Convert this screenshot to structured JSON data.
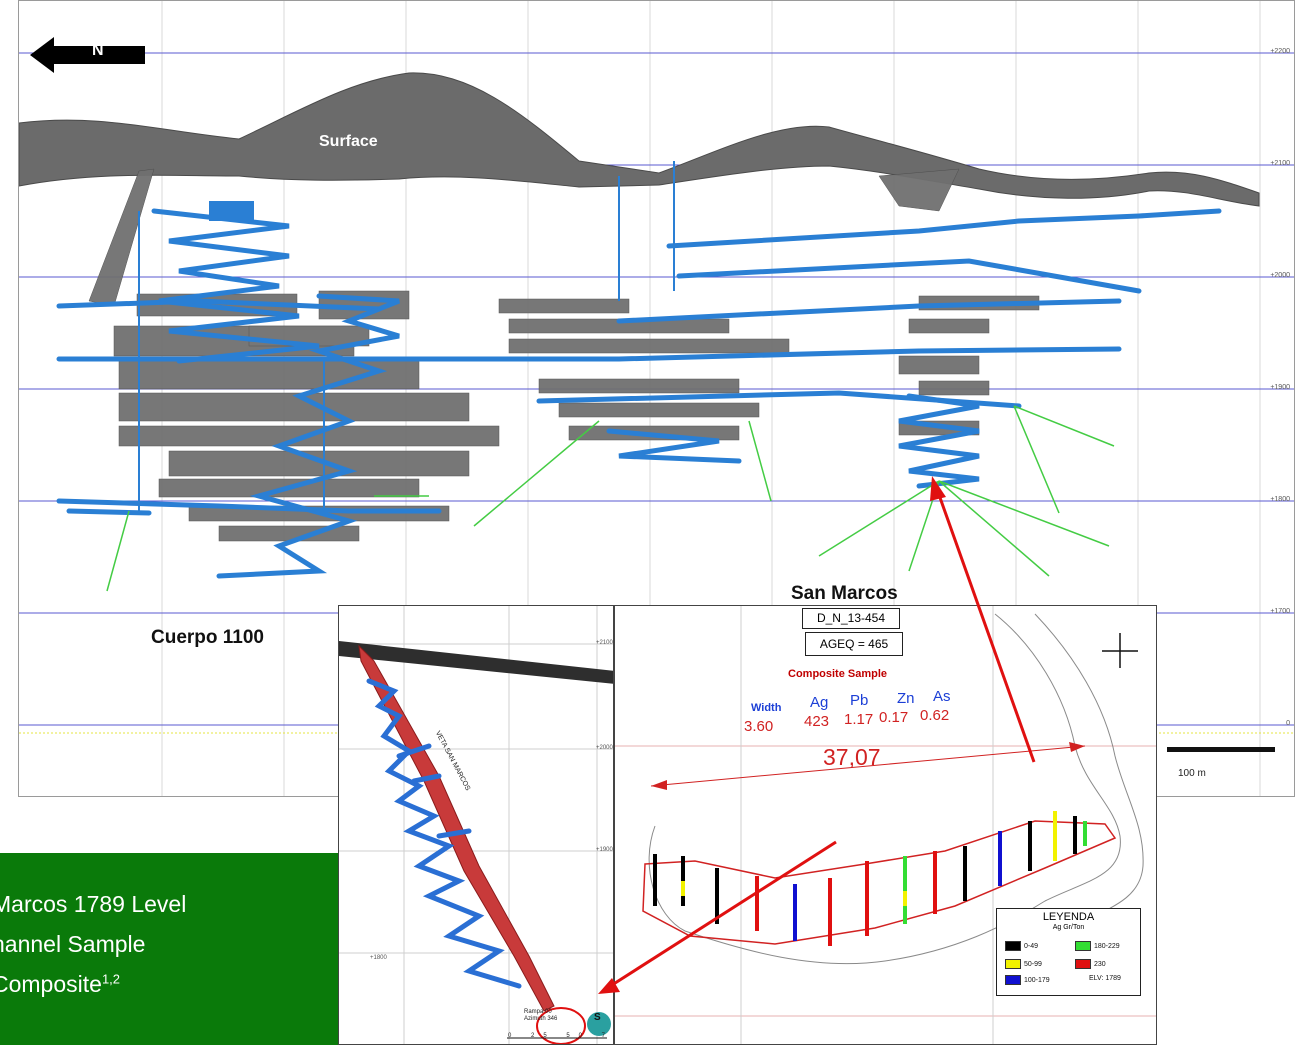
{
  "north_label": "N",
  "labels": {
    "surface": "Surface",
    "san_marcos": "San Marcos",
    "cuerpo": "Cuerpo 1100",
    "scale": "100 m"
  },
  "elevations": [
    "+2200",
    "+2100",
    "+2000",
    "+1900",
    "+1800",
    "+1700",
    "0"
  ],
  "inset_left": {
    "vein_label": "VETA SAN MARCOS",
    "ramp_line1": "Rampa 00",
    "ramp_line2": "Azimuth 346",
    "scale_ticks": "0 25 50 75 100",
    "hole_tag": "S",
    "elev": [
      "+2100",
      "+2000",
      "+1900",
      "+1800"
    ]
  },
  "inset_right": {
    "hole_id": "D_N_13-454",
    "ageq": "AGEQ = 465",
    "composite_title": "Composite Sample",
    "headers": {
      "width": "Width",
      "ag": "Ag",
      "pb": "Pb",
      "zn": "Zn",
      "as": "As"
    },
    "values": {
      "width": "3.60",
      "ag": "423",
      "pb": "1.17",
      "zn": "0.17",
      "as": "0.62"
    },
    "distance": "37,07"
  },
  "legend": {
    "title": "LEYENDA",
    "subtitle": "Ag Gr/Ton",
    "items": [
      {
        "label": "0-49",
        "color": "#000000"
      },
      {
        "label": "180-229",
        "color": "#33dd33"
      },
      {
        "label": "50-99",
        "color": "#f2f200"
      },
      {
        "label": "230",
        "color": "#e01010"
      },
      {
        "label": "100-179",
        "color": "#1010d0"
      }
    ],
    "elv": "ELV: 1789"
  },
  "caption": {
    "line1": "Marcos 1789 Level",
    "line2": "hannel Sample",
    "line3": "Composite",
    "superscript": "1,2",
    "background": "#0a7a0a"
  },
  "colors": {
    "workings": "#2a7fd4",
    "stopes": "#6e6e6e",
    "drillholes": "#44cc44",
    "annotation": "#e01010"
  }
}
